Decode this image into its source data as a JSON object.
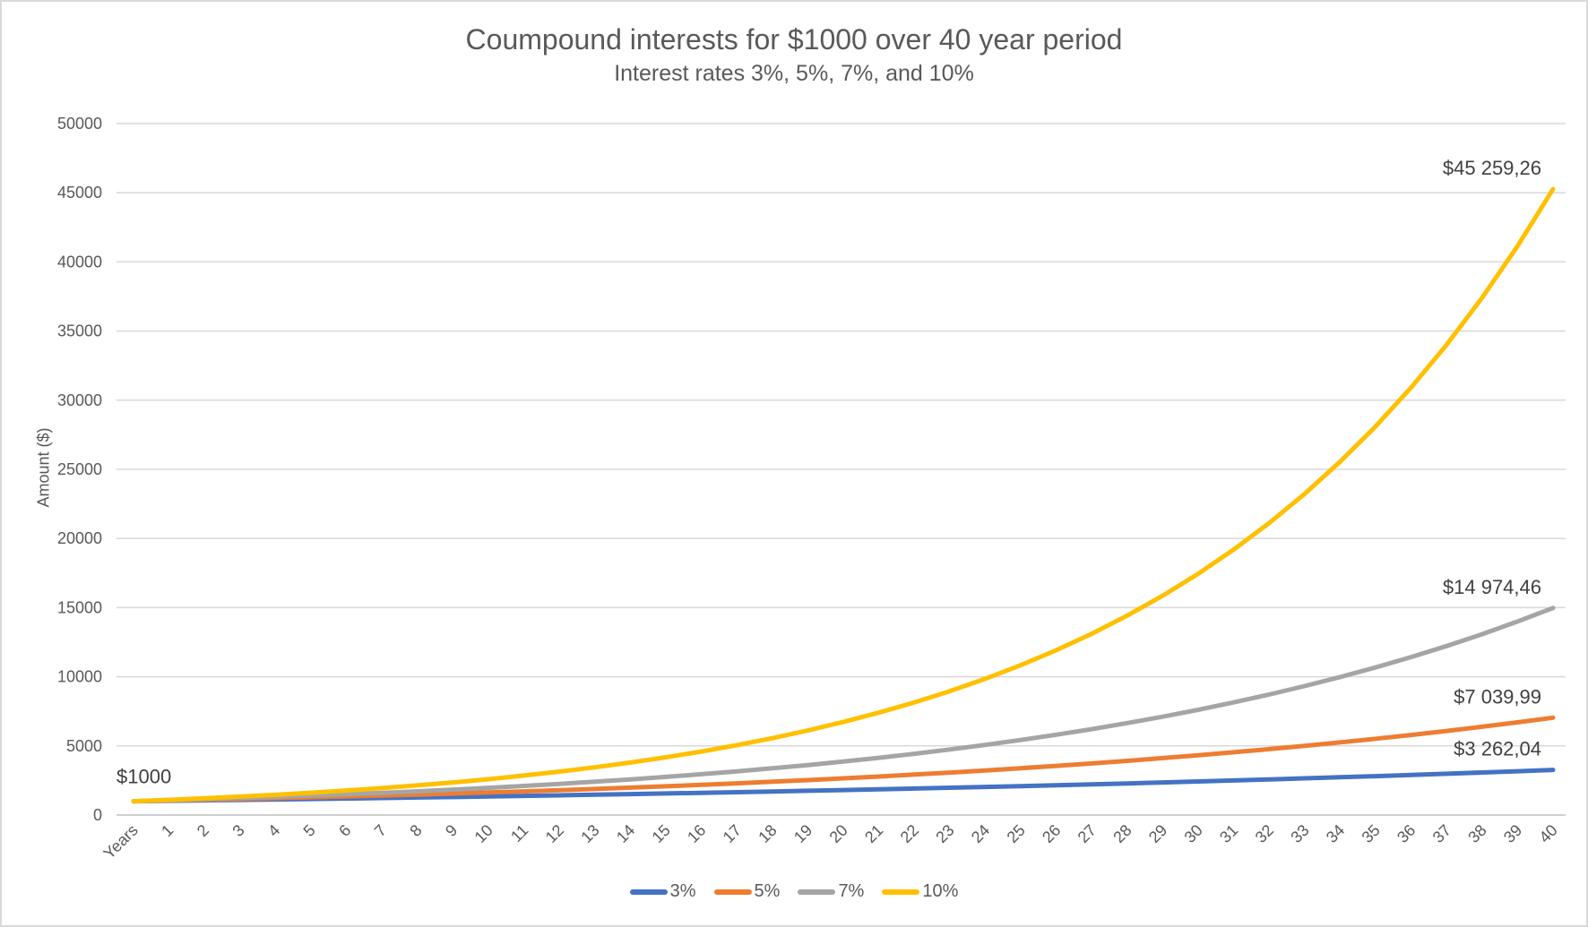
{
  "chart_data": {
    "type": "line",
    "title": "Coumpound interests for $1000 over 40 year period",
    "subtitle": "Interest rates 3%, 5%, 7%, and 10%",
    "ylabel": "Amount ($)",
    "xlabel_first_category": "Years",
    "ylim": [
      0,
      50000
    ],
    "yticks": [
      0,
      5000,
      10000,
      15000,
      20000,
      25000,
      30000,
      35000,
      40000,
      45000,
      50000
    ],
    "grid": true,
    "legend_position": "bottom",
    "grid_color": "#D9D9D9",
    "axis_color": "#BFBFBF",
    "text_color": "#595959",
    "label_color": "#404040",
    "categories": [
      "Years",
      "1",
      "2",
      "3",
      "4",
      "5",
      "6",
      "7",
      "8",
      "9",
      "10",
      "11",
      "12",
      "13",
      "14",
      "15",
      "16",
      "17",
      "18",
      "19",
      "20",
      "21",
      "22",
      "23",
      "24",
      "25",
      "26",
      "27",
      "28",
      "29",
      "30",
      "31",
      "32",
      "33",
      "34",
      "35",
      "36",
      "37",
      "38",
      "39",
      "40"
    ],
    "series": [
      {
        "name": "3%",
        "color": "#4472C4",
        "values": [
          1000,
          1030,
          1060.9,
          1092.73,
          1125.51,
          1159.27,
          1194.05,
          1229.87,
          1266.77,
          1304.77,
          1343.92,
          1384.23,
          1425.76,
          1468.53,
          1512.59,
          1557.97,
          1604.71,
          1652.85,
          1702.43,
          1753.51,
          1806.11,
          1860.29,
          1916.1,
          1973.59,
          2032.79,
          2093.78,
          2156.59,
          2221.29,
          2287.93,
          2356.57,
          2427.26,
          2500.08,
          2575.08,
          2652.34,
          2731.91,
          2813.86,
          2898.28,
          2985.23,
          3074.78,
          3167.03,
          3262.04
        ]
      },
      {
        "name": "5%",
        "color": "#ED7D31",
        "values": [
          1000,
          1050,
          1102.5,
          1157.63,
          1215.51,
          1276.28,
          1340.1,
          1407.1,
          1477.46,
          1551.33,
          1628.89,
          1710.34,
          1795.86,
          1885.65,
          1979.93,
          2078.93,
          2182.87,
          2292.02,
          2406.62,
          2526.95,
          2653.3,
          2785.96,
          2925.26,
          3071.52,
          3225.1,
          3386.35,
          3555.67,
          3733.46,
          3920.13,
          4116.14,
          4321.94,
          4538.04,
          4764.94,
          5003.19,
          5253.35,
          5516.02,
          5791.82,
          6081.41,
          6385.48,
          6704.75,
          7039.99
        ]
      },
      {
        "name": "7%",
        "color": "#A5A5A5",
        "values": [
          1000,
          1070,
          1144.9,
          1225.04,
          1310.8,
          1402.55,
          1500.73,
          1605.78,
          1718.19,
          1838.46,
          1967.15,
          2104.85,
          2252.19,
          2409.85,
          2578.53,
          2759.03,
          2952.16,
          3158.82,
          3379.93,
          3616.53,
          3869.68,
          4140.56,
          4430.4,
          4740.53,
          5072.37,
          5427.43,
          5807.35,
          6213.87,
          6648.84,
          7114.26,
          7612.26,
          8145.11,
          8715.27,
          9325.34,
          9978.11,
          10676.58,
          11423.94,
          12223.62,
          13079.27,
          13994.82,
          14974.46
        ]
      },
      {
        "name": "10%",
        "color": "#FFC000",
        "values": [
          1000,
          1100,
          1210,
          1331,
          1464.1,
          1610.51,
          1771.56,
          1948.72,
          2143.59,
          2357.95,
          2593.74,
          2853.12,
          3138.43,
          3452.27,
          3797.5,
          4177.25,
          4594.97,
          5054.47,
          5559.92,
          6115.91,
          6727.5,
          7400.25,
          8140.27,
          8954.3,
          9849.73,
          10834.71,
          11918.18,
          13109.99,
          14420.99,
          15863.09,
          17449.4,
          19194.34,
          21113.78,
          23225.15,
          25547.67,
          28102.44,
          30912.68,
          34003.95,
          37404.34,
          41144.78,
          45259.26
        ]
      }
    ],
    "start_label": {
      "text": "$1000"
    },
    "end_labels": [
      {
        "series": "3%",
        "text": "$3 262,04"
      },
      {
        "series": "5%",
        "text": "$7 039,99"
      },
      {
        "series": "7%",
        "text": "$14 974,46"
      },
      {
        "series": "10%",
        "text": "$45 259,26"
      }
    ]
  }
}
